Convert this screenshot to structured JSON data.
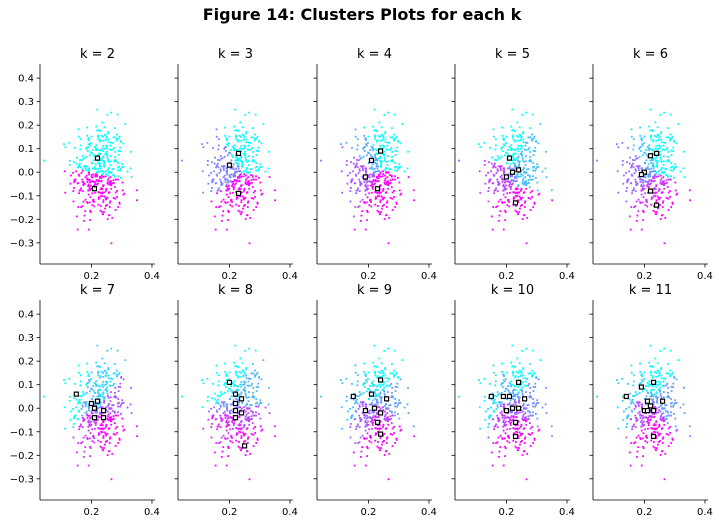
{
  "figure": {
    "title": "Figure 14: Clusters Plots for each k"
  },
  "colors": {
    "cluster_low": "#00ffff",
    "cluster_high": "#ff00ff",
    "centroid_edge": "#000000",
    "centroid_fill": "#ffffff"
  },
  "chart_data": [
    {
      "type": "scatter",
      "title": "k = 2",
      "k": 2,
      "xlim": [
        0.03,
        0.41
      ],
      "ylim": [
        -0.39,
        0.46
      ],
      "xticks": [
        "0.2",
        "0.4"
      ],
      "yticks": [
        "0.4",
        "0.3",
        "0.2",
        "0.1",
        "0.0",
        "−0.1",
        "−0.2",
        "−0.3"
      ],
      "centroids": [
        {
          "x": 0.22,
          "y": 0.06
        },
        {
          "x": 0.21,
          "y": -0.07
        }
      ]
    },
    {
      "type": "scatter",
      "title": "k = 3",
      "k": 3,
      "xlim": [
        0.03,
        0.41
      ],
      "ylim": [
        -0.39,
        0.46
      ],
      "xticks": [
        "0.2",
        "0.4"
      ],
      "centroids": [
        {
          "x": 0.23,
          "y": 0.08
        },
        {
          "x": 0.2,
          "y": 0.03
        },
        {
          "x": 0.23,
          "y": -0.09
        }
      ]
    },
    {
      "type": "scatter",
      "title": "k = 4",
      "k": 4,
      "xlim": [
        0.03,
        0.41
      ],
      "ylim": [
        -0.39,
        0.46
      ],
      "xticks": [
        "0.2",
        "0.4"
      ],
      "centroids": [
        {
          "x": 0.24,
          "y": 0.09
        },
        {
          "x": 0.21,
          "y": 0.05
        },
        {
          "x": 0.19,
          "y": -0.02
        },
        {
          "x": 0.23,
          "y": -0.07
        }
      ]
    },
    {
      "type": "scatter",
      "title": "k = 5",
      "k": 5,
      "xlim": [
        0.03,
        0.41
      ],
      "ylim": [
        -0.39,
        0.46
      ],
      "xticks": [
        "0.2",
        "0.4"
      ],
      "centroids": [
        {
          "x": 0.21,
          "y": 0.06
        },
        {
          "x": 0.24,
          "y": 0.01
        },
        {
          "x": 0.22,
          "y": 0.0
        },
        {
          "x": 0.2,
          "y": -0.02
        },
        {
          "x": 0.23,
          "y": -0.13
        }
      ]
    },
    {
      "type": "scatter",
      "title": "k = 6",
      "k": 6,
      "xlim": [
        0.03,
        0.41
      ],
      "ylim": [
        -0.39,
        0.46
      ],
      "xticks": [
        "0.2",
        "0.4"
      ],
      "centroids": [
        {
          "x": 0.24,
          "y": 0.08
        },
        {
          "x": 0.22,
          "y": 0.07
        },
        {
          "x": 0.2,
          "y": 0.0
        },
        {
          "x": 0.19,
          "y": -0.01
        },
        {
          "x": 0.22,
          "y": -0.08
        },
        {
          "x": 0.24,
          "y": -0.14
        }
      ]
    },
    {
      "type": "scatter",
      "title": "k = 7",
      "k": 7,
      "xlim": [
        0.03,
        0.41
      ],
      "ylim": [
        -0.39,
        0.46
      ],
      "xticks": [
        "0.2",
        "0.4"
      ],
      "yticks": [
        "0.4",
        "0.3",
        "0.2",
        "0.1",
        "0.0",
        "−0.1",
        "−0.2",
        "−0.3"
      ],
      "centroids": [
        {
          "x": 0.15,
          "y": 0.06
        },
        {
          "x": 0.22,
          "y": 0.03
        },
        {
          "x": 0.2,
          "y": 0.02
        },
        {
          "x": 0.24,
          "y": -0.01
        },
        {
          "x": 0.21,
          "y": -0.04
        },
        {
          "x": 0.24,
          "y": -0.04
        },
        {
          "x": 0.21,
          "y": 0.0
        }
      ]
    },
    {
      "type": "scatter",
      "title": "k = 8",
      "k": 8,
      "xlim": [
        0.03,
        0.41
      ],
      "ylim": [
        -0.39,
        0.46
      ],
      "xticks": [
        "0.2",
        "0.4"
      ],
      "centroids": [
        {
          "x": 0.2,
          "y": 0.11
        },
        {
          "x": 0.22,
          "y": 0.06
        },
        {
          "x": 0.24,
          "y": 0.04
        },
        {
          "x": 0.22,
          "y": 0.02
        },
        {
          "x": 0.22,
          "y": -0.01
        },
        {
          "x": 0.24,
          "y": -0.02
        },
        {
          "x": 0.22,
          "y": -0.04
        },
        {
          "x": 0.25,
          "y": -0.16
        }
      ]
    },
    {
      "type": "scatter",
      "title": "k = 9",
      "k": 9,
      "xlim": [
        0.03,
        0.41
      ],
      "ylim": [
        -0.39,
        0.46
      ],
      "xticks": [
        "0.2",
        "0.4"
      ],
      "centroids": [
        {
          "x": 0.24,
          "y": 0.12
        },
        {
          "x": 0.15,
          "y": 0.05
        },
        {
          "x": 0.21,
          "y": 0.06
        },
        {
          "x": 0.26,
          "y": 0.04
        },
        {
          "x": 0.22,
          "y": 0.0
        },
        {
          "x": 0.19,
          "y": -0.01
        },
        {
          "x": 0.24,
          "y": -0.02
        },
        {
          "x": 0.23,
          "y": -0.06
        },
        {
          "x": 0.24,
          "y": -0.11
        }
      ]
    },
    {
      "type": "scatter",
      "title": "k = 10",
      "k": 10,
      "xlim": [
        0.03,
        0.41
      ],
      "ylim": [
        -0.39,
        0.46
      ],
      "xticks": [
        "0.2",
        "0.4"
      ],
      "centroids": [
        {
          "x": 0.24,
          "y": 0.11
        },
        {
          "x": 0.15,
          "y": 0.05
        },
        {
          "x": 0.19,
          "y": 0.05
        },
        {
          "x": 0.21,
          "y": 0.05
        },
        {
          "x": 0.26,
          "y": 0.04
        },
        {
          "x": 0.22,
          "y": 0.0
        },
        {
          "x": 0.2,
          "y": -0.01
        },
        {
          "x": 0.24,
          "y": 0.0
        },
        {
          "x": 0.23,
          "y": -0.06
        },
        {
          "x": 0.23,
          "y": -0.12
        }
      ]
    },
    {
      "type": "scatter",
      "title": "k = 11",
      "k": 11,
      "xlim": [
        0.03,
        0.41
      ],
      "ylim": [
        -0.39,
        0.46
      ],
      "xticks": [
        "0.2",
        "0.4"
      ],
      "centroids": [
        {
          "x": 0.23,
          "y": 0.11
        },
        {
          "x": 0.19,
          "y": 0.09
        },
        {
          "x": 0.14,
          "y": 0.05
        },
        {
          "x": 0.21,
          "y": 0.03
        },
        {
          "x": 0.26,
          "y": 0.03
        },
        {
          "x": 0.22,
          "y": 0.0
        },
        {
          "x": 0.2,
          "y": -0.01
        },
        {
          "x": 0.23,
          "y": -0.01
        },
        {
          "x": 0.21,
          "y": -0.01
        },
        {
          "x": 0.22,
          "y": 0.01
        },
        {
          "x": 0.23,
          "y": -0.12
        }
      ]
    }
  ]
}
